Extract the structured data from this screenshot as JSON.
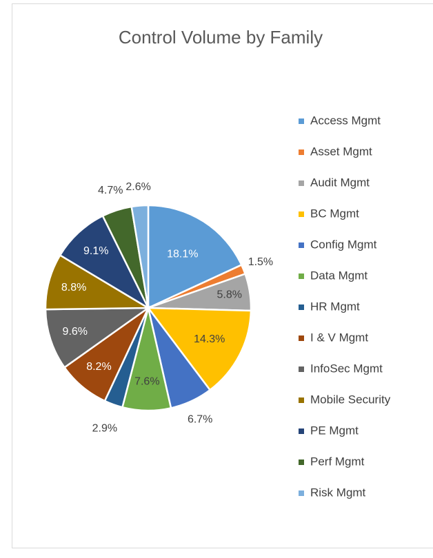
{
  "chart_data": {
    "type": "pie",
    "title": "Control Volume by Family",
    "categories": [
      "Access Mgmt",
      "Asset Mgmt",
      "Audit Mgmt",
      "BC Mgmt",
      "Config Mgmt",
      "Data Mgmt",
      "HR Mgmt",
      "I & V Mgmt",
      "InfoSec Mgmt",
      "Mobile Security",
      "PE Mgmt",
      "Perf Mgmt",
      "Risk Mgmt"
    ],
    "values": [
      18.1,
      1.5,
      5.8,
      14.3,
      6.7,
      7.6,
      2.9,
      8.2,
      9.6,
      8.8,
      9.1,
      4.7,
      2.6
    ],
    "value_labels": [
      "18.1%",
      "1.5%",
      "5.8%",
      "14.3%",
      "6.7%",
      "7.6%",
      "2.9%",
      "8.2%",
      "9.6%",
      "8.8%",
      "9.1%",
      "4.7%",
      "2.6%"
    ],
    "colors": [
      "#5b9bd5",
      "#ed7d31",
      "#a5a5a5",
      "#ffc000",
      "#4472c4",
      "#70ad47",
      "#255e91",
      "#9e480e",
      "#636363",
      "#997300",
      "#264478",
      "#43682b",
      "#7cafdd"
    ],
    "legend": "right"
  }
}
